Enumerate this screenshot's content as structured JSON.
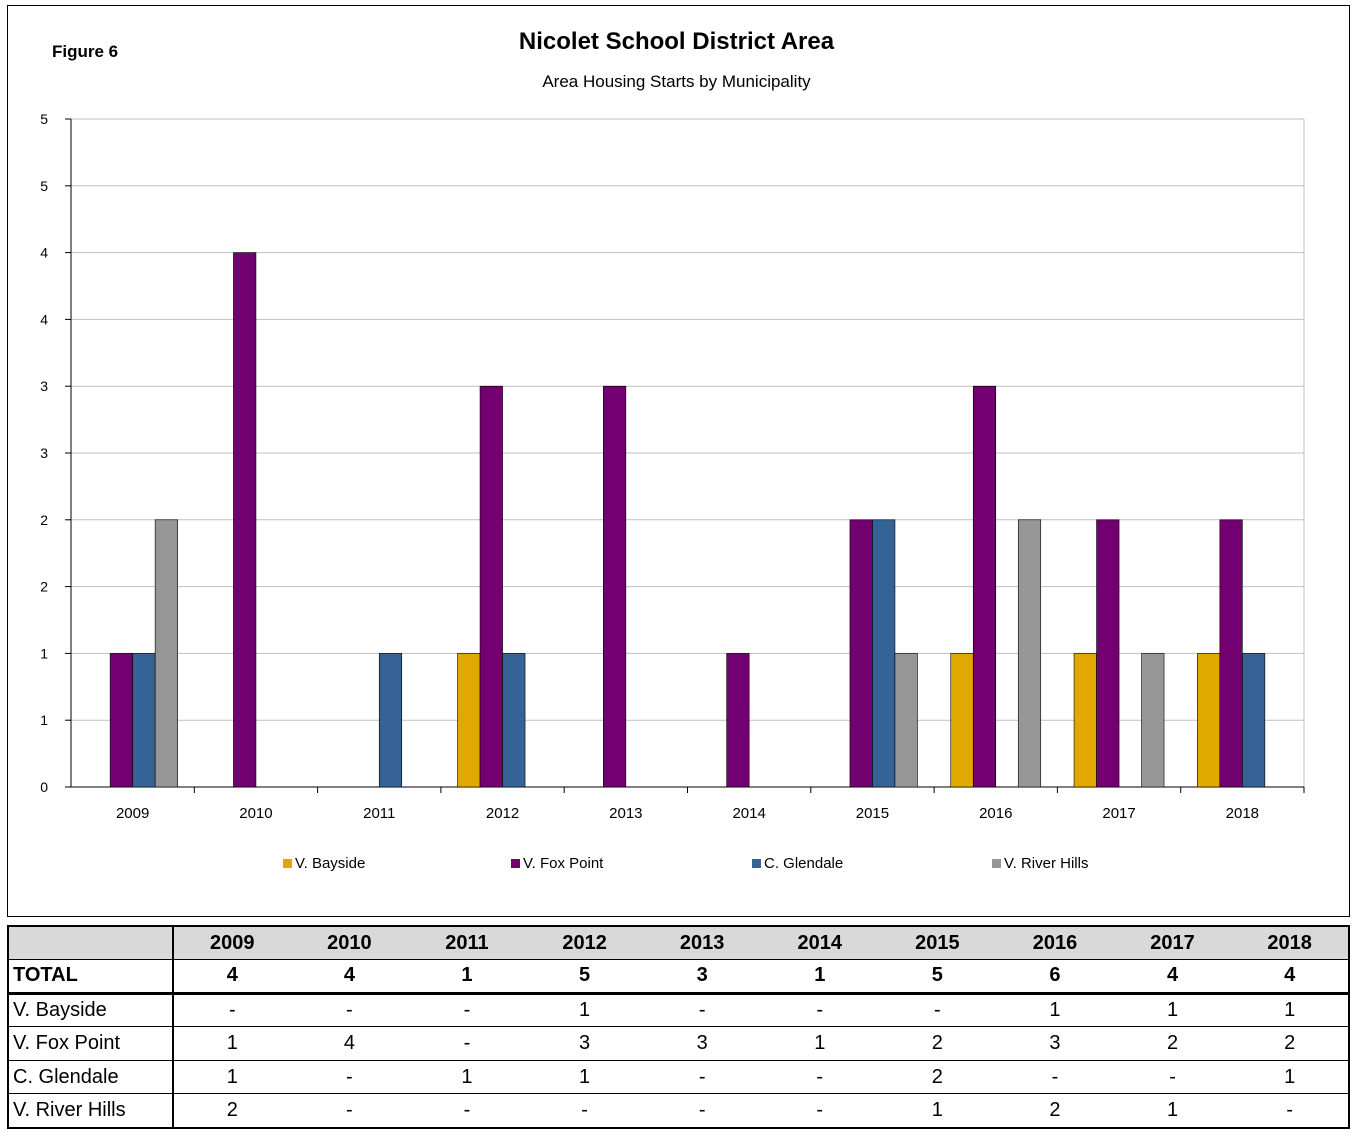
{
  "figure_label": "Figure 6",
  "chart_data": {
    "type": "bar",
    "title": "Nicolet School District Area",
    "subtitle": "Area Housing Starts by Municipality",
    "categories": [
      "2009",
      "2010",
      "2011",
      "2012",
      "2013",
      "2014",
      "2015",
      "2016",
      "2017",
      "2018"
    ],
    "series": [
      {
        "name": "V. Bayside",
        "color": "#e0a800",
        "values": [
          0,
          0,
          0,
          1,
          0,
          0,
          0,
          1,
          1,
          1
        ]
      },
      {
        "name": "V. Fox Point",
        "color": "#730070",
        "values": [
          1,
          4,
          0,
          3,
          3,
          1,
          2,
          3,
          2,
          2
        ]
      },
      {
        "name": "C. Glendale",
        "color": "#356396",
        "values": [
          1,
          0,
          1,
          1,
          0,
          0,
          2,
          0,
          0,
          1
        ]
      },
      {
        "name": "V. River Hills",
        "color": "#969696",
        "values": [
          2,
          0,
          0,
          0,
          0,
          0,
          1,
          2,
          1,
          0
        ]
      }
    ],
    "ylim": [
      0,
      5
    ],
    "y_tick_labels": [
      "0",
      "1",
      "1",
      "2",
      "2",
      "3",
      "3",
      "4",
      "4",
      "5"
    ],
    "y_tick_values": [
      0,
      0.5,
      1,
      1.5,
      2,
      2.5,
      3,
      3.5,
      4,
      4.5
    ],
    "y_top_label": "5",
    "grid": true,
    "legend_position": "bottom"
  },
  "table": {
    "years": [
      "2009",
      "2010",
      "2011",
      "2012",
      "2013",
      "2014",
      "2015",
      "2016",
      "2017",
      "2018"
    ],
    "rows": [
      {
        "label": "TOTAL",
        "values": [
          "4",
          "4",
          "1",
          "5",
          "3",
          "1",
          "5",
          "6",
          "4",
          "4"
        ]
      },
      {
        "label": "V. Bayside",
        "values": [
          "-",
          "-",
          "-",
          "1",
          "-",
          "-",
          "-",
          "1",
          "1",
          "1"
        ]
      },
      {
        "label": "V. Fox Point",
        "values": [
          "1",
          "4",
          "-",
          "3",
          "3",
          "1",
          "2",
          "3",
          "2",
          "2"
        ]
      },
      {
        "label": "C. Glendale",
        "values": [
          "1",
          "-",
          "1",
          "1",
          "-",
          "-",
          "2",
          "-",
          "-",
          "1"
        ]
      },
      {
        "label": "V. River Hills",
        "values": [
          "2",
          "-",
          "-",
          "-",
          "-",
          "-",
          "1",
          "2",
          "1",
          "-"
        ]
      }
    ]
  }
}
